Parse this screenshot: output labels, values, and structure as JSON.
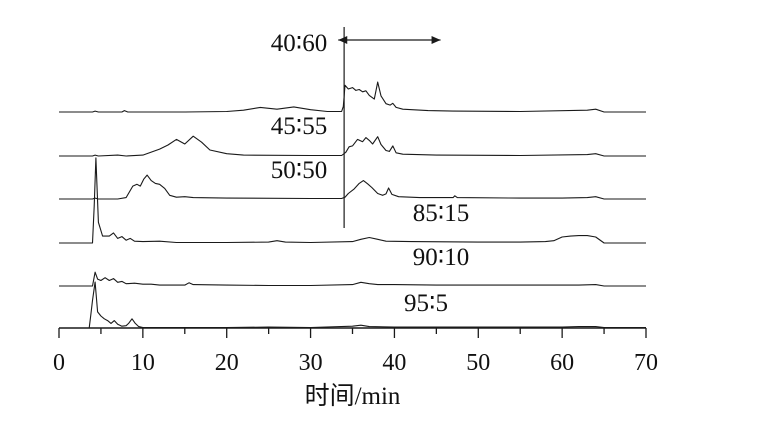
{
  "chart_data": {
    "type": "line",
    "title": "",
    "xlabel": "时间/min",
    "ylabel": "",
    "xlim": [
      0,
      70
    ],
    "xticks": [
      "0",
      "10",
      "20",
      "30",
      "40",
      "50",
      "60",
      "70"
    ],
    "annotation": {
      "marker_x_min": 34,
      "arrow_x_range": [
        33.3,
        45.5
      ]
    },
    "series": [
      {
        "name": "40:60",
        "label": "40∶60",
        "points": [
          [
            0,
            0
          ],
          [
            4,
            0
          ],
          [
            4.3,
            0.2
          ],
          [
            4.7,
            0
          ],
          [
            7.5,
            0
          ],
          [
            7.8,
            0.3
          ],
          [
            8.2,
            0
          ],
          [
            15,
            0
          ],
          [
            20,
            0.1
          ],
          [
            22,
            0.4
          ],
          [
            24,
            1.0
          ],
          [
            26,
            0.6
          ],
          [
            28,
            1.1
          ],
          [
            30,
            0.5
          ],
          [
            32,
            0.1
          ],
          [
            33.7,
            0.1
          ],
          [
            33.9,
            1.2
          ],
          [
            34.1,
            5.8
          ],
          [
            34.5,
            5.0
          ],
          [
            35,
            5.3
          ],
          [
            35.4,
            4.7
          ],
          [
            35.8,
            4.9
          ],
          [
            36.2,
            4.4
          ],
          [
            36.6,
            4.6
          ],
          [
            37,
            3.6
          ],
          [
            37.6,
            2.8
          ],
          [
            38,
            6.5
          ],
          [
            38.4,
            3.5
          ],
          [
            39,
            1.8
          ],
          [
            39.5,
            1.5
          ],
          [
            39.8,
            1.9
          ],
          [
            40.2,
            1.0
          ],
          [
            41,
            0.6
          ],
          [
            44,
            0.3
          ],
          [
            47,
            0.2
          ],
          [
            55,
            0.1
          ],
          [
            63,
            0.4
          ],
          [
            64,
            0.6
          ],
          [
            65,
            0
          ],
          [
            70,
            0
          ]
        ]
      },
      {
        "name": "45:55",
        "label": "45∶55",
        "points": [
          [
            0,
            0
          ],
          [
            4,
            0
          ],
          [
            4.3,
            0.2
          ],
          [
            4.7,
            0
          ],
          [
            7,
            0.2
          ],
          [
            8,
            0
          ],
          [
            10,
            0.2
          ],
          [
            12,
            1.5
          ],
          [
            13,
            2.4
          ],
          [
            14,
            3.6
          ],
          [
            15,
            2.6
          ],
          [
            16,
            4.3
          ],
          [
            17,
            3.0
          ],
          [
            18,
            1.3
          ],
          [
            20,
            0.5
          ],
          [
            22,
            0.2
          ],
          [
            30,
            0.1
          ],
          [
            33.7,
            0.1
          ],
          [
            34.2,
            0.8
          ],
          [
            34.6,
            2.0
          ],
          [
            35,
            2.2
          ],
          [
            35.6,
            3.6
          ],
          [
            36.2,
            3.1
          ],
          [
            36.6,
            4.0
          ],
          [
            37,
            3.4
          ],
          [
            37.4,
            2.6
          ],
          [
            38,
            4.2
          ],
          [
            38.4,
            2.5
          ],
          [
            39,
            1.2
          ],
          [
            39.4,
            1.0
          ],
          [
            39.8,
            2.2
          ],
          [
            40.2,
            0.7
          ],
          [
            41,
            0.4
          ],
          [
            45,
            0.2
          ],
          [
            55,
            0.1
          ],
          [
            63,
            0.3
          ],
          [
            64,
            0.5
          ],
          [
            65,
            0
          ],
          [
            70,
            0
          ]
        ]
      },
      {
        "name": "50:50",
        "label": "50∶50",
        "points": [
          [
            0,
            0
          ],
          [
            4,
            0
          ],
          [
            4.3,
            0.2
          ],
          [
            4.7,
            0
          ],
          [
            7,
            0
          ],
          [
            8,
            0.3
          ],
          [
            8.8,
            2.8
          ],
          [
            9.3,
            3.2
          ],
          [
            9.7,
            2.8
          ],
          [
            10.1,
            4.3
          ],
          [
            10.5,
            5.2
          ],
          [
            11,
            4.0
          ],
          [
            11.5,
            3.4
          ],
          [
            12,
            3.2
          ],
          [
            12.6,
            2.3
          ],
          [
            13.2,
            0.8
          ],
          [
            14,
            0.4
          ],
          [
            15,
            0.5
          ],
          [
            16,
            0.3
          ],
          [
            20,
            0.2
          ],
          [
            30,
            0.1
          ],
          [
            33.7,
            0.1
          ],
          [
            34.1,
            0.4
          ],
          [
            34.5,
            1.2
          ],
          [
            35.2,
            2.2
          ],
          [
            35.8,
            3.4
          ],
          [
            36.3,
            4.0
          ],
          [
            36.8,
            3.3
          ],
          [
            37.3,
            2.5
          ],
          [
            38,
            1.2
          ],
          [
            38.6,
            0.8
          ],
          [
            39,
            1.1
          ],
          [
            39.3,
            2.4
          ],
          [
            39.7,
            1.0
          ],
          [
            40.5,
            0.5
          ],
          [
            43,
            0.3
          ],
          [
            47,
            0.3
          ],
          [
            47.2,
            0.7
          ],
          [
            47.5,
            0.3
          ],
          [
            55,
            0.2
          ],
          [
            60,
            0.2
          ],
          [
            63,
            0.3
          ],
          [
            64,
            0.5
          ],
          [
            65,
            0
          ],
          [
            70,
            0
          ]
        ]
      },
      {
        "name": "85:15",
        "label": "85∶15",
        "points": [
          [
            0,
            0
          ],
          [
            4,
            0
          ],
          [
            4.2,
            8.0
          ],
          [
            4.4,
            18.5
          ],
          [
            4.7,
            4.5
          ],
          [
            5.2,
            1.5
          ],
          [
            6,
            1.5
          ],
          [
            6.5,
            2.2
          ],
          [
            7,
            1.0
          ],
          [
            7.5,
            1.4
          ],
          [
            8,
            0.6
          ],
          [
            8.5,
            1.0
          ],
          [
            9,
            0.4
          ],
          [
            10,
            0.3
          ],
          [
            12,
            0.4
          ],
          [
            14,
            0.1
          ],
          [
            20,
            0.1
          ],
          [
            25,
            0.2
          ],
          [
            26,
            0.5
          ],
          [
            27,
            0.2
          ],
          [
            30,
            0.1
          ],
          [
            35,
            0.3
          ],
          [
            36,
            0.8
          ],
          [
            37,
            1.2
          ],
          [
            38,
            0.8
          ],
          [
            39,
            0.4
          ],
          [
            42,
            0.3
          ],
          [
            50,
            0.2
          ],
          [
            55,
            0.2
          ],
          [
            58,
            0.3
          ],
          [
            59,
            0.5
          ],
          [
            60,
            1.3
          ],
          [
            61,
            1.5
          ],
          [
            62,
            1.6
          ],
          [
            63,
            1.6
          ],
          [
            64,
            1.3
          ],
          [
            65,
            0
          ],
          [
            70,
            0
          ]
        ]
      },
      {
        "name": "90:10",
        "label": "90∶10",
        "points": [
          [
            0,
            0
          ],
          [
            4,
            0
          ],
          [
            4.3,
            3.0
          ],
          [
            4.6,
            1.5
          ],
          [
            5,
            1.2
          ],
          [
            5.5,
            1.8
          ],
          [
            6,
            1.2
          ],
          [
            6.5,
            1.6
          ],
          [
            7,
            0.8
          ],
          [
            7.5,
            1.0
          ],
          [
            8,
            0.5
          ],
          [
            9,
            0.6
          ],
          [
            10,
            0.4
          ],
          [
            11,
            0.4
          ],
          [
            12,
            0.2
          ],
          [
            15,
            0.2
          ],
          [
            15.5,
            0.7
          ],
          [
            16,
            0.3
          ],
          [
            20,
            0.2
          ],
          [
            25,
            0.1
          ],
          [
            30,
            0.1
          ],
          [
            35,
            0.3
          ],
          [
            36,
            0.8
          ],
          [
            37,
            0.5
          ],
          [
            38,
            0.3
          ],
          [
            40,
            0.3
          ],
          [
            45,
            0.2
          ],
          [
            50,
            0.2
          ],
          [
            55,
            0.2
          ],
          [
            60,
            0.2
          ],
          [
            62,
            0.2
          ],
          [
            64,
            0.3
          ],
          [
            65,
            0
          ],
          [
            70,
            0
          ]
        ]
      },
      {
        "name": "95:5",
        "label": "95∶5",
        "points": [
          [
            0,
            0
          ],
          [
            3.6,
            0
          ],
          [
            3.8,
            3.0
          ],
          [
            4.0,
            6.0
          ],
          [
            4.3,
            10.0
          ],
          [
            4.6,
            3.5
          ],
          [
            5,
            2.6
          ],
          [
            5.4,
            2.0
          ],
          [
            5.8,
            1.6
          ],
          [
            6.2,
            1.0
          ],
          [
            6.6,
            1.6
          ],
          [
            7,
            0.8
          ],
          [
            7.5,
            0.4
          ],
          [
            8,
            0.5
          ],
          [
            8.3,
            1.0
          ],
          [
            8.7,
            2.0
          ],
          [
            9.1,
            1.0
          ],
          [
            9.5,
            0.3
          ],
          [
            10,
            0.1
          ],
          [
            12,
            0.1
          ],
          [
            14,
            0.1
          ],
          [
            16,
            0.1
          ],
          [
            20,
            0.1
          ],
          [
            25,
            0.2
          ],
          [
            30,
            0.1
          ],
          [
            35,
            0.4
          ],
          [
            36,
            0.6
          ],
          [
            37,
            0.3
          ],
          [
            40,
            0.2
          ],
          [
            45,
            0.2
          ],
          [
            50,
            0.2
          ],
          [
            55,
            0.2
          ],
          [
            60,
            0.2
          ],
          [
            62,
            0.3
          ],
          [
            64,
            0.3
          ],
          [
            65,
            0.1
          ],
          [
            70,
            0.1
          ]
        ]
      }
    ]
  }
}
